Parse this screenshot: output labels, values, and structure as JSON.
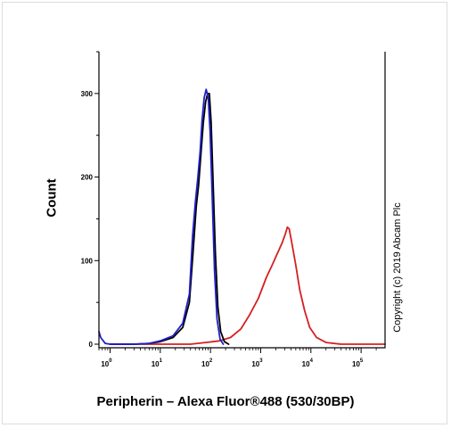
{
  "chart_data": {
    "type": "line",
    "title": "",
    "xlabel": "Peripherin – Alexa Fluor®488 (530/30BP)",
    "ylabel": "Count",
    "x_scale": "log",
    "xlim": [
      0.6,
      300000
    ],
    "ylim": [
      0,
      350
    ],
    "yticks": [
      0,
      100,
      200,
      300
    ],
    "yticklabels": [
      "0",
      "100",
      "200",
      "300"
    ],
    "xticks": [
      1,
      10,
      100,
      1000,
      10000,
      100000
    ],
    "xticklabels": [
      {
        "base": "10",
        "exp": "0"
      },
      {
        "base": "10",
        "exp": "1"
      },
      {
        "base": "10",
        "exp": "2"
      },
      {
        "base": "10",
        "exp": "3"
      },
      {
        "base": "10",
        "exp": "4"
      },
      {
        "base": "10",
        "exp": "5"
      }
    ],
    "grid": false,
    "legend": false,
    "series": [
      {
        "color": "#000000",
        "x": [
          1,
          3,
          6,
          10,
          18,
          28,
          38,
          45,
          52,
          58,
          65,
          72,
          80,
          88,
          95,
          103,
          112,
          125,
          140,
          160,
          190,
          230
        ],
        "y": [
          0,
          0,
          1,
          3,
          8,
          20,
          50,
          110,
          165,
          190,
          230,
          265,
          290,
          300,
          300,
          265,
          200,
          110,
          45,
          15,
          3,
          0
        ]
      },
      {
        "color": "#2020c8",
        "x": [
          0.6,
          0.65,
          0.8,
          1,
          3,
          6,
          10,
          18,
          28,
          38,
          44,
          50,
          56,
          62,
          68,
          75,
          82,
          90,
          98,
          108,
          120,
          135,
          155,
          180
        ],
        "y": [
          15,
          8,
          1,
          0,
          0,
          1,
          4,
          10,
          25,
          60,
          130,
          170,
          200,
          230,
          268,
          295,
          305,
          295,
          255,
          180,
          90,
          30,
          6,
          0
        ]
      },
      {
        "color": "#d42020",
        "x": [
          1,
          40,
          80,
          150,
          250,
          400,
          600,
          900,
          1300,
          1700,
          2200,
          2700,
          3100,
          3400,
          3700,
          4200,
          5000,
          6000,
          7500,
          9500,
          13000,
          20000,
          40000,
          300000
        ],
        "y": [
          0,
          0,
          2,
          4,
          8,
          18,
          35,
          55,
          80,
          95,
          110,
          122,
          132,
          140,
          138,
          120,
          95,
          65,
          40,
          20,
          8,
          2,
          0,
          0
        ]
      }
    ]
  },
  "watermark": {
    "text": "Copyright (c) 2019 Abcam Plc"
  }
}
